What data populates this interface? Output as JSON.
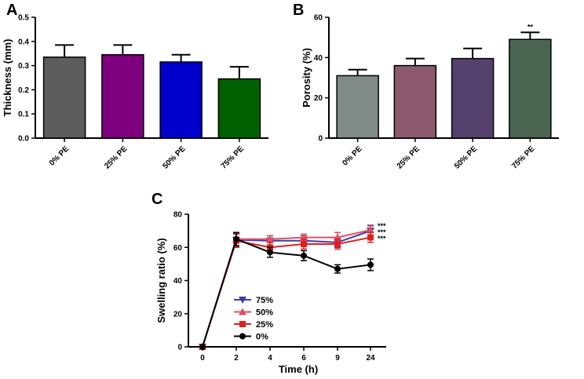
{
  "chart_data": [
    {
      "panel": "A",
      "type": "bar",
      "title": "",
      "xlabel": "",
      "ylabel": "Thickness (mm)",
      "ylim": [
        0,
        0.5
      ],
      "yticks": [
        "0.0",
        "0.1",
        "0.2",
        "0.3",
        "0.4",
        "0.5"
      ],
      "categories": [
        "0% PE",
        "25% PE",
        "50% PE",
        "75% PE"
      ],
      "values": [
        0.335,
        0.345,
        0.315,
        0.245
      ],
      "errors": [
        0.05,
        0.04,
        0.03,
        0.05
      ],
      "colors": [
        "#5c5c5c",
        "#7e007e",
        "#0000cc",
        "#006000"
      ],
      "annotations": [
        "",
        "",
        "",
        ""
      ]
    },
    {
      "panel": "B",
      "type": "bar",
      "title": "",
      "xlabel": "",
      "ylabel": "Porosity (%)",
      "ylim": [
        0,
        60
      ],
      "yticks": [
        "0",
        "20",
        "40",
        "60"
      ],
      "categories": [
        "0% PE",
        "25% PE",
        "50% PE",
        "75% PE"
      ],
      "values": [
        31,
        36,
        39.5,
        49
      ],
      "errors": [
        3,
        3.5,
        5,
        3.5
      ],
      "colors": [
        "#808a86",
        "#8c5a6c",
        "#54416e",
        "#4a6452"
      ],
      "annotations": [
        "",
        "",
        "",
        "**"
      ]
    },
    {
      "panel": "C",
      "type": "line",
      "title": "",
      "xlabel": "Time (h)",
      "ylabel": "Swelling ratio (%)",
      "ylim": [
        0,
        80
      ],
      "yticks": [
        "0",
        "20",
        "40",
        "60",
        "80"
      ],
      "categories": [
        "0",
        "2",
        "4",
        "6",
        "9",
        "24"
      ],
      "legend_position": "left",
      "series": [
        {
          "name": "75%",
          "color": "#3c3ca0",
          "marker": "triangle-down",
          "values": [
            0,
            64.5,
            64,
            64,
            63,
            70
          ],
          "errors": [
            0,
            4,
            3,
            3,
            3,
            3
          ],
          "annotation": "***"
        },
        {
          "name": "50%",
          "color": "#e05060",
          "marker": "triangle-up",
          "values": [
            0,
            65,
            65,
            66,
            66,
            70.5
          ],
          "errors": [
            0,
            4,
            2,
            2,
            3,
            3
          ],
          "annotation": "***"
        },
        {
          "name": "25%",
          "color": "#dd2020",
          "marker": "square",
          "values": [
            0,
            64,
            60,
            62,
            62,
            66
          ],
          "errors": [
            0,
            4,
            3,
            3,
            3,
            3
          ],
          "annotation": "***"
        },
        {
          "name": "0%",
          "color": "#000000",
          "marker": "circle",
          "values": [
            0,
            65,
            57,
            55,
            47,
            49.5
          ],
          "errors": [
            0,
            4,
            3,
            3,
            2.5,
            3.5
          ],
          "annotation": ""
        }
      ]
    }
  ]
}
